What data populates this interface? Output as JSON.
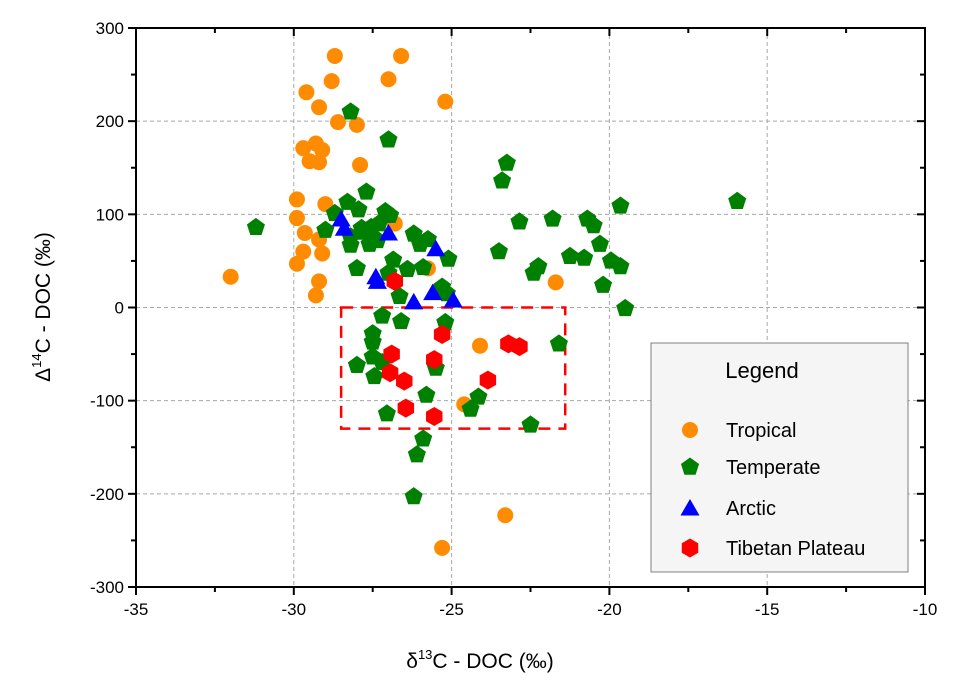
{
  "chart_data": {
    "type": "scatter",
    "title": "",
    "xlabel": {
      "prefix": "δ",
      "sup": "13",
      "rest": "C - DOC (‰)"
    },
    "ylabel": {
      "prefix": "Δ",
      "sup": "14",
      "rest": "C - DOC (‰)"
    },
    "xlim": [
      -35,
      -10
    ],
    "ylim": [
      -300,
      300
    ],
    "xticks": [
      -35,
      -30,
      -25,
      -20,
      -15,
      -10
    ],
    "xtick_labels": [
      "-35",
      "-30",
      "-25",
      "-20",
      "-15",
      "-10"
    ],
    "yticks": [
      -300,
      -200,
      -100,
      0,
      100,
      200,
      300
    ],
    "ytick_labels": [
      "-300",
      "-200",
      "-100",
      "0",
      "100",
      "200",
      "300"
    ],
    "x_minor_step": 2.5,
    "y_minor_step": 50,
    "grid": true,
    "legend": {
      "title": "Legend",
      "placement": "bottom-right",
      "entries": [
        "Tropical",
        "Temperate",
        "Arctic",
        "Tibetan Plateau"
      ]
    },
    "annotation": {
      "type": "dashed-rectangle",
      "color": "#ff0000",
      "x_range": [
        -28.5,
        -21.4
      ],
      "y_range": [
        -130,
        0
      ]
    },
    "series": [
      {
        "name": "Tropical",
        "marker": "circle",
        "color": "#ff8c00",
        "points": [
          [
            -28.7,
            270
          ],
          [
            -26.6,
            270
          ],
          [
            -28.8,
            243
          ],
          [
            -27.0,
            245
          ],
          [
            -29.6,
            231
          ],
          [
            -29.2,
            215
          ],
          [
            -25.2,
            221
          ],
          [
            -28.6,
            199
          ],
          [
            -28.0,
            196
          ],
          [
            -29.7,
            171
          ],
          [
            -29.3,
            176
          ],
          [
            -29.1,
            169
          ],
          [
            -29.5,
            157
          ],
          [
            -29.2,
            156
          ],
          [
            -27.9,
            153
          ],
          [
            -29.9,
            116
          ],
          [
            -29.0,
            111
          ],
          [
            -29.9,
            96
          ],
          [
            -26.8,
            90
          ],
          [
            -29.65,
            80
          ],
          [
            -29.2,
            73
          ],
          [
            -29.7,
            60
          ],
          [
            -29.1,
            58
          ],
          [
            -29.9,
            47
          ],
          [
            -32.0,
            33
          ],
          [
            -29.2,
            28
          ],
          [
            -29.3,
            13
          ],
          [
            -25.75,
            42
          ],
          [
            -21.7,
            27
          ],
          [
            -24.1,
            -41
          ],
          [
            -24.6,
            -104
          ],
          [
            -23.3,
            -223
          ],
          [
            -25.3,
            -258
          ]
        ]
      },
      {
        "name": "Temperate",
        "marker": "pentagon",
        "color": "#008000",
        "points": [
          [
            -28.2,
            210
          ],
          [
            -27.0,
            180
          ],
          [
            -27.7,
            124
          ],
          [
            -28.3,
            113
          ],
          [
            -27.95,
            105
          ],
          [
            -27.1,
            103
          ],
          [
            -28.7,
            101
          ],
          [
            -26.95,
            99
          ],
          [
            -31.2,
            86
          ],
          [
            -29.0,
            83
          ],
          [
            -27.85,
            85
          ],
          [
            -27.55,
            86
          ],
          [
            -27.3,
            90
          ],
          [
            -27.8,
            81
          ],
          [
            -28.2,
            76
          ],
          [
            -27.5,
            76
          ],
          [
            -28.2,
            67
          ],
          [
            -27.6,
            68
          ],
          [
            -27.35,
            72
          ],
          [
            -26.2,
            79
          ],
          [
            -26.0,
            68
          ],
          [
            -25.75,
            73
          ],
          [
            -25.1,
            52
          ],
          [
            -28.0,
            42
          ],
          [
            -26.85,
            51
          ],
          [
            -27.0,
            37
          ],
          [
            -26.4,
            41
          ],
          [
            -25.9,
            43
          ],
          [
            -26.65,
            12
          ],
          [
            -25.3,
            22
          ],
          [
            -25.15,
            15
          ],
          [
            -23.25,
            155
          ],
          [
            -23.4,
            136
          ],
          [
            -19.65,
            109
          ],
          [
            -22.85,
            92
          ],
          [
            -21.8,
            95
          ],
          [
            -20.7,
            95
          ],
          [
            -20.5,
            88
          ],
          [
            -20.3,
            68
          ],
          [
            -23.5,
            60
          ],
          [
            -21.25,
            55
          ],
          [
            -20.8,
            53
          ],
          [
            -19.95,
            50
          ],
          [
            -19.65,
            44
          ],
          [
            -22.25,
            44
          ],
          [
            -22.4,
            37
          ],
          [
            -20.2,
            24
          ],
          [
            -19.5,
            -1
          ],
          [
            -15.95,
            114
          ],
          [
            -27.2,
            -9
          ],
          [
            -26.6,
            -15
          ],
          [
            -25.2,
            -16
          ],
          [
            -27.5,
            -28
          ],
          [
            -27.5,
            -37
          ],
          [
            -27.5,
            -53
          ],
          [
            -27.2,
            -59
          ],
          [
            -28.0,
            -62
          ],
          [
            -27.45,
            -74
          ],
          [
            -25.5,
            -65
          ],
          [
            -25.8,
            -94
          ],
          [
            -24.15,
            -96
          ],
          [
            -24.4,
            -109
          ],
          [
            -27.05,
            -114
          ],
          [
            -22.5,
            -126
          ],
          [
            -21.6,
            -39
          ],
          [
            -25.9,
            -141
          ],
          [
            -26.1,
            -158
          ],
          [
            -26.2,
            -203
          ]
        ]
      },
      {
        "name": "Arctic",
        "marker": "triangle",
        "color": "#0000ff",
        "points": [
          [
            -28.5,
            95
          ],
          [
            -28.4,
            85
          ],
          [
            -27.0,
            80
          ],
          [
            -25.5,
            63
          ],
          [
            -27.4,
            33
          ],
          [
            -27.35,
            28
          ],
          [
            -26.2,
            6
          ],
          [
            -25.6,
            16
          ],
          [
            -24.95,
            8
          ]
        ]
      },
      {
        "name": "Tibetan Plateau",
        "marker": "hexagon",
        "color": "#ff0000",
        "points": [
          [
            -26.8,
            28
          ],
          [
            -25.3,
            -29
          ],
          [
            -26.9,
            -50
          ],
          [
            -25.55,
            -56
          ],
          [
            -26.95,
            -70
          ],
          [
            -26.5,
            -79
          ],
          [
            -23.2,
            -39
          ],
          [
            -22.85,
            -42
          ],
          [
            -23.85,
            -78
          ],
          [
            -26.45,
            -108
          ],
          [
            -25.55,
            -117
          ]
        ]
      }
    ]
  }
}
